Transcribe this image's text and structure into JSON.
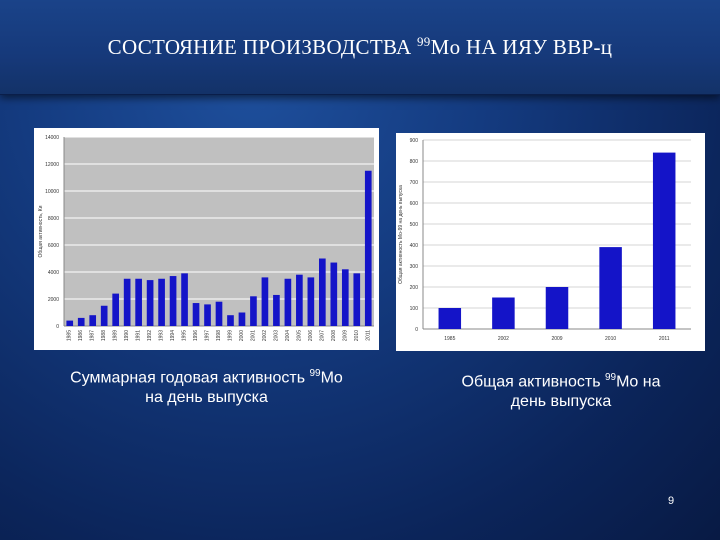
{
  "title": {
    "prefix": "СОСТОЯНИЕ ПРОИЗВОДСТВА ",
    "sup": "99",
    "suffix": "Mo НА ИЯУ ВВР-ц"
  },
  "captions": [
    {
      "prefix": "Суммарная годовая активность ",
      "sup": "99",
      "suffix": "Mo",
      "line2": "на день выпуска"
    },
    {
      "prefix": "Общая активность ",
      "sup": "99",
      "suffix": "Mo на",
      "line2": "день выпуска"
    }
  ],
  "page_number": "9",
  "colors": {
    "bar": "#1414c8",
    "plot_bg": "#c0c0c0",
    "grid": "#ffffff"
  },
  "chart_data": [
    {
      "type": "bar",
      "ylabel": "Общая активность, Ки",
      "ylim": [
        0,
        14000
      ],
      "yticks": [
        0,
        2000,
        4000,
        6000,
        8000,
        10000,
        12000,
        14000
      ],
      "grid": true,
      "categories": [
        "1985",
        "1986",
        "1987",
        "1988",
        "1989",
        "1990",
        "1991",
        "1992",
        "1993",
        "1994",
        "1995",
        "1996",
        "1997",
        "1998",
        "1999",
        "2000",
        "2001",
        "2002",
        "2003",
        "2004",
        "2005",
        "2006",
        "2007",
        "2008",
        "2009",
        "2010",
        "2011"
      ],
      "values": [
        400,
        600,
        800,
        1500,
        2400,
        3500,
        3500,
        3400,
        3500,
        3700,
        3900,
        1700,
        1600,
        1800,
        800,
        1000,
        2200,
        3600,
        2300,
        3500,
        3800,
        3600,
        5000,
        4700,
        4200,
        3900,
        11500
      ]
    },
    {
      "type": "bar",
      "ylabel": "Общая активность Мо-99 на день выпуска",
      "ylim": [
        0,
        900
      ],
      "yticks": [
        0,
        100,
        200,
        300,
        400,
        500,
        600,
        700,
        800,
        900
      ],
      "grid": true,
      "categories": [
        "1985",
        "2002",
        "2009",
        "2010",
        "2011"
      ],
      "values": [
        100,
        150,
        200,
        390,
        840
      ]
    }
  ]
}
